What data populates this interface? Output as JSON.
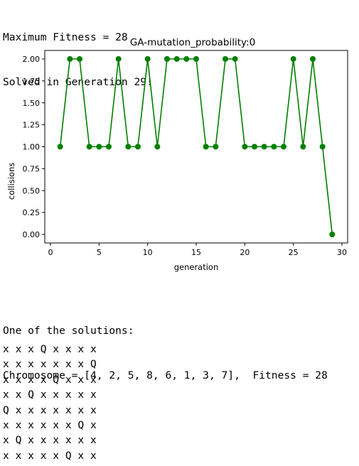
{
  "output": {
    "max_fitness": "Maximum Fitness = 28",
    "solved": "Solved in Generation 29!",
    "solutions_header": "One of the solutions:",
    "chromosome_line": "Chromosome = [4, 2, 5, 8, 6, 1, 3, 7],  Fitness = 28",
    "board": [
      "x x x Q x x x x",
      "x x x x x x x Q",
      "x x x x Q x x x",
      "x x Q x x x x x",
      "Q x x x x x x x",
      "x x x x x x Q x",
      "x Q x x x x x x",
      "x x x x x Q x x"
    ]
  },
  "chart_data": {
    "type": "line",
    "title": "GA-mutation_probability:0",
    "xlabel": "generation",
    "ylabel": "collisions",
    "xlim": [
      0,
      30
    ],
    "ylim": [
      0,
      2
    ],
    "xticks": [
      0,
      5,
      10,
      15,
      20,
      25,
      30
    ],
    "yticks": [
      0.0,
      0.25,
      0.5,
      0.75,
      1.0,
      1.25,
      1.5,
      1.75,
      2.0
    ],
    "x": [
      1,
      2,
      3,
      4,
      5,
      6,
      7,
      8,
      9,
      10,
      11,
      12,
      13,
      14,
      15,
      16,
      17,
      18,
      19,
      20,
      21,
      22,
      23,
      24,
      25,
      26,
      27,
      28,
      29
    ],
    "series": [
      {
        "values": [
          1,
          2,
          2,
          1,
          1,
          1,
          2,
          1,
          1,
          2,
          1,
          2,
          2,
          2,
          2,
          1,
          1,
          2,
          2,
          1,
          1,
          1,
          1,
          1,
          2,
          1,
          2,
          1,
          0
        ],
        "color": "#008000",
        "marker": "circle"
      }
    ],
    "grid": false
  }
}
